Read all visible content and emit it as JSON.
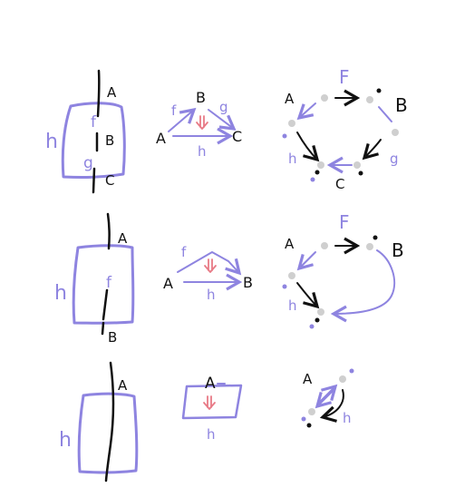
{
  "colors": {
    "black": "#111111",
    "purple": "#8e84e0",
    "red": "#e87a86",
    "gray": "#cfcfcf"
  },
  "row1": {
    "strip": {
      "top": "A",
      "f": "f",
      "middle": "B",
      "g": "g",
      "bottom": "C",
      "h": "h"
    },
    "triangle": {
      "A": "A",
      "B": "B",
      "C": "C",
      "f": "f",
      "g": "g",
      "h": "h"
    },
    "network": {
      "A": "A",
      "F": "F",
      "B": "B",
      "C": "C",
      "h": "h",
      "g": "g"
    }
  },
  "row2": {
    "strip": {
      "top": "A",
      "f": "f",
      "bottom": "B",
      "h": "h"
    },
    "triangle": {
      "A": "A",
      "B": "B",
      "f": "f",
      "h": "h"
    },
    "network": {
      "A": "A",
      "F": "F",
      "B": "B",
      "h": "h"
    }
  },
  "row3": {
    "strip": {
      "top": "A",
      "h": "h"
    },
    "square": {
      "A": "A",
      "h": "h"
    },
    "network": {
      "A": "A",
      "h": "h"
    }
  }
}
